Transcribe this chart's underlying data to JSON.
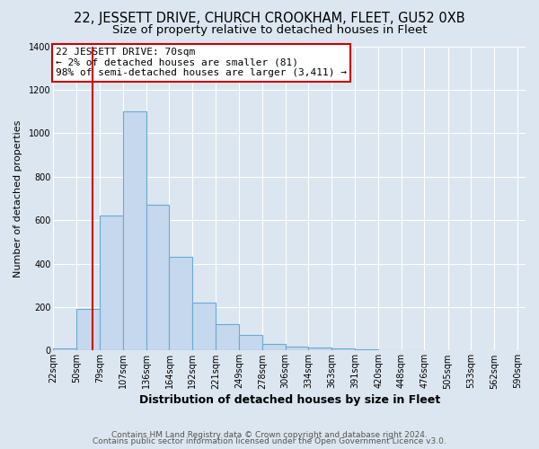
{
  "title": "22, JESSETT DRIVE, CHURCH CROOKHAM, FLEET, GU52 0XB",
  "subtitle": "Size of property relative to detached houses in Fleet",
  "xlabel": "Distribution of detached houses by size in Fleet",
  "ylabel": "Number of detached properties",
  "bar_counts": [
    10,
    190,
    620,
    1100,
    670,
    430,
    220,
    120,
    70,
    30,
    20,
    15,
    10,
    5,
    2,
    1
  ],
  "bin_edges": [
    22,
    50,
    79,
    107,
    136,
    164,
    192,
    221,
    249,
    278,
    306,
    334,
    363,
    391,
    420,
    448,
    476
  ],
  "xtick_labels": [
    "22sqm",
    "50sqm",
    "79sqm",
    "107sqm",
    "136sqm",
    "164sqm",
    "192sqm",
    "221sqm",
    "249sqm",
    "278sqm",
    "306sqm",
    "334sqm",
    "363sqm",
    "391sqm",
    "420sqm",
    "448sqm",
    "476sqm",
    "505sqm",
    "533sqm",
    "562sqm",
    "590sqm"
  ],
  "xtick_positions": [
    22,
    50,
    79,
    107,
    136,
    164,
    192,
    221,
    249,
    278,
    306,
    334,
    363,
    391,
    420,
    448,
    476,
    505,
    533,
    562,
    590
  ],
  "bar_color": "#c5d8ee",
  "bar_edge_color": "#6aaad4",
  "vline_x": 70,
  "vline_color": "#cc0000",
  "ylim": [
    0,
    1400
  ],
  "xlim": [
    22,
    600
  ],
  "annotation_title": "22 JESSETT DRIVE: 70sqm",
  "annotation_line1": "← 2% of detached houses are smaller (81)",
  "annotation_line2": "98% of semi-detached houses are larger (3,411) →",
  "annotation_box_facecolor": "#ffffff",
  "annotation_box_edgecolor": "#cc0000",
  "footnote1": "Contains HM Land Registry data © Crown copyright and database right 2024.",
  "footnote2": "Contains public sector information licensed under the Open Government Licence v3.0.",
  "fig_facecolor": "#dce6f0",
  "plot_facecolor": "#dce6f0",
  "grid_color": "#ffffff",
  "title_fontsize": 10.5,
  "subtitle_fontsize": 9.5,
  "xlabel_fontsize": 9,
  "ylabel_fontsize": 8,
  "tick_fontsize": 7,
  "annotation_fontsize": 8,
  "footnote_fontsize": 6.5
}
